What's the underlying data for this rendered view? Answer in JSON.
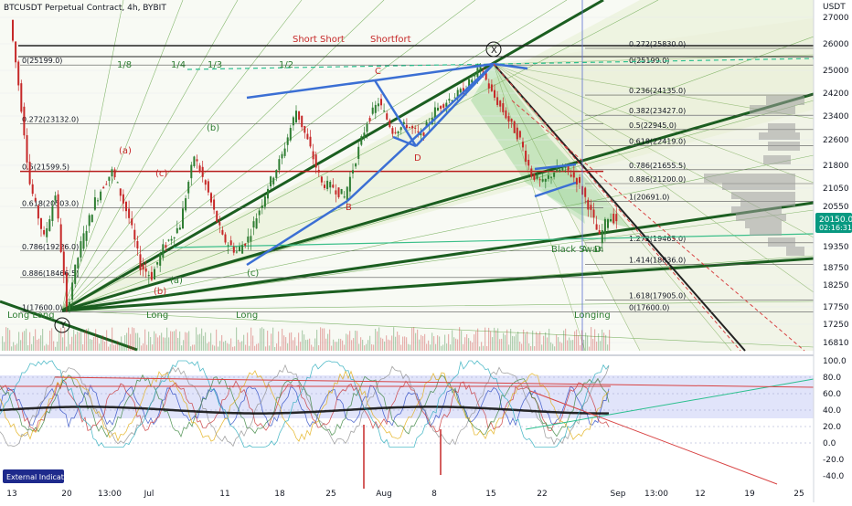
{
  "header": {
    "title": "BTCUSDT Perpetual Contract, 4h, BYBIT",
    "currency": "USDT"
  },
  "price_badge": {
    "price": "20150.0",
    "countdown": "02:16:31"
  },
  "indicator_button": "External Indicator",
  "colors": {
    "bull": "#2e7d32",
    "bear": "#c62828",
    "blue": "#3b6fd4",
    "darkgreen": "#1b5e20",
    "red_level": "#b71c1c",
    "badge": "#089981"
  },
  "chart_data": [
    {
      "type": "candlestick",
      "title": "BTCUSDT Perpetual Contract, 4h, BYBIT",
      "ylim": [
        16610,
        27500
      ],
      "y_ticks": [
        27000,
        26000,
        25000,
        24200,
        23400,
        22600,
        21800,
        21050,
        20550,
        19350,
        18750,
        18250,
        17750,
        17250,
        16810
      ],
      "x_tick_labels": [
        "13",
        "20",
        "13:00",
        "Jul",
        "11",
        "18",
        "25",
        "Aug",
        "8",
        "15",
        "22",
        "Sep",
        "13:00",
        "12",
        "19",
        "25"
      ],
      "price_path": [
        [
          0,
          26900
        ],
        [
          0.3,
          24500
        ],
        [
          0.7,
          21200
        ],
        [
          1.2,
          19600
        ],
        [
          1.6,
          20900
        ],
        [
          2.0,
          17650
        ],
        [
          2.5,
          19400
        ],
        [
          3.0,
          20700
        ],
        [
          3.6,
          21600
        ],
        [
          4.2,
          20200
        ],
        [
          4.6,
          18800
        ],
        [
          5.0,
          18500
        ],
        [
          5.4,
          19300
        ],
        [
          6.0,
          20000
        ],
        [
          6.5,
          22100
        ],
        [
          7.0,
          20900
        ],
        [
          7.5,
          19600
        ],
        [
          8.0,
          19200
        ],
        [
          8.4,
          19600
        ],
        [
          9.0,
          20900
        ],
        [
          9.6,
          22100
        ],
        [
          10.1,
          23600
        ],
        [
          10.6,
          22300
        ],
        [
          11.0,
          21200
        ],
        [
          11.4,
          21100
        ],
        [
          11.8,
          20800
        ],
        [
          12.2,
          22000
        ],
        [
          12.6,
          23200
        ],
        [
          13.0,
          23900
        ],
        [
          13.5,
          22900
        ],
        [
          14.0,
          23100
        ],
        [
          14.5,
          22700
        ],
        [
          15.0,
          23600
        ],
        [
          15.5,
          24000
        ],
        [
          16.0,
          24300
        ],
        [
          16.6,
          25100
        ],
        [
          17.0,
          24200
        ],
        [
          17.5,
          23400
        ],
        [
          18.0,
          22600
        ],
        [
          18.4,
          21500
        ],
        [
          18.8,
          21200
        ],
        [
          19.2,
          21600
        ],
        [
          19.6,
          21700
        ],
        [
          20.0,
          21300
        ],
        [
          20.4,
          20600
        ],
        [
          20.8,
          19600
        ],
        [
          21.1,
          20250
        ],
        [
          21.4,
          20150
        ]
      ],
      "annotations": [
        "Short Short",
        "Shortfort",
        "(a)",
        "(b)",
        "(c)",
        "(a)",
        "(c)",
        "(b)",
        "C",
        "B",
        "D",
        "X",
        "Y",
        "Black Swan",
        "A",
        "D",
        "Long Long",
        "Long",
        "Long",
        "Longing",
        "1/8",
        "1/4",
        "1/3",
        "1/2"
      ],
      "levels": [
        {
          "label": "0(25199.0)",
          "price": 25199
        },
        {
          "label": "0.272(23132.0)",
          "price": 23132
        },
        {
          "label": "0.5(21599.5)",
          "price": 21599.5
        },
        {
          "label": "0.618(20503.0)",
          "price": 20503
        },
        {
          "label": "0.786(19226.0)",
          "price": 19226
        },
        {
          "label": "0.886(18466.5)",
          "price": 18466.5
        },
        {
          "label": "1(17600.0)",
          "price": 17600
        },
        {
          "label": "0.272(25830.0)",
          "price": 25830
        },
        {
          "label": "0(25199.0)",
          "price": 25199
        },
        {
          "label": "0.236(24135.0)",
          "price": 24135
        },
        {
          "label": "0.382(23427.0)",
          "price": 23427
        },
        {
          "label": "0.5(22945.0)",
          "price": 22945
        },
        {
          "label": "0.618(22419.0)",
          "price": 22419
        },
        {
          "label": "0.786(21655.5)",
          "price": 21655.5
        },
        {
          "label": "0.886(21200.0)",
          "price": 21200
        },
        {
          "label": "1(20691.0)",
          "price": 20691
        },
        {
          "label": "1.272(19465.0)",
          "price": 19465
        },
        {
          "label": "1.414(18836.0)",
          "price": 18836
        },
        {
          "label": "1.618(17905.0)",
          "price": 17905
        },
        {
          "label": "0(17600.0)",
          "price": 17600
        }
      ]
    },
    {
      "type": "line",
      "title": "External Indicator",
      "ylim": [
        -40,
        100
      ],
      "y_ticks": [
        100,
        80,
        60,
        40,
        20,
        0,
        -20,
        -40
      ]
    }
  ]
}
